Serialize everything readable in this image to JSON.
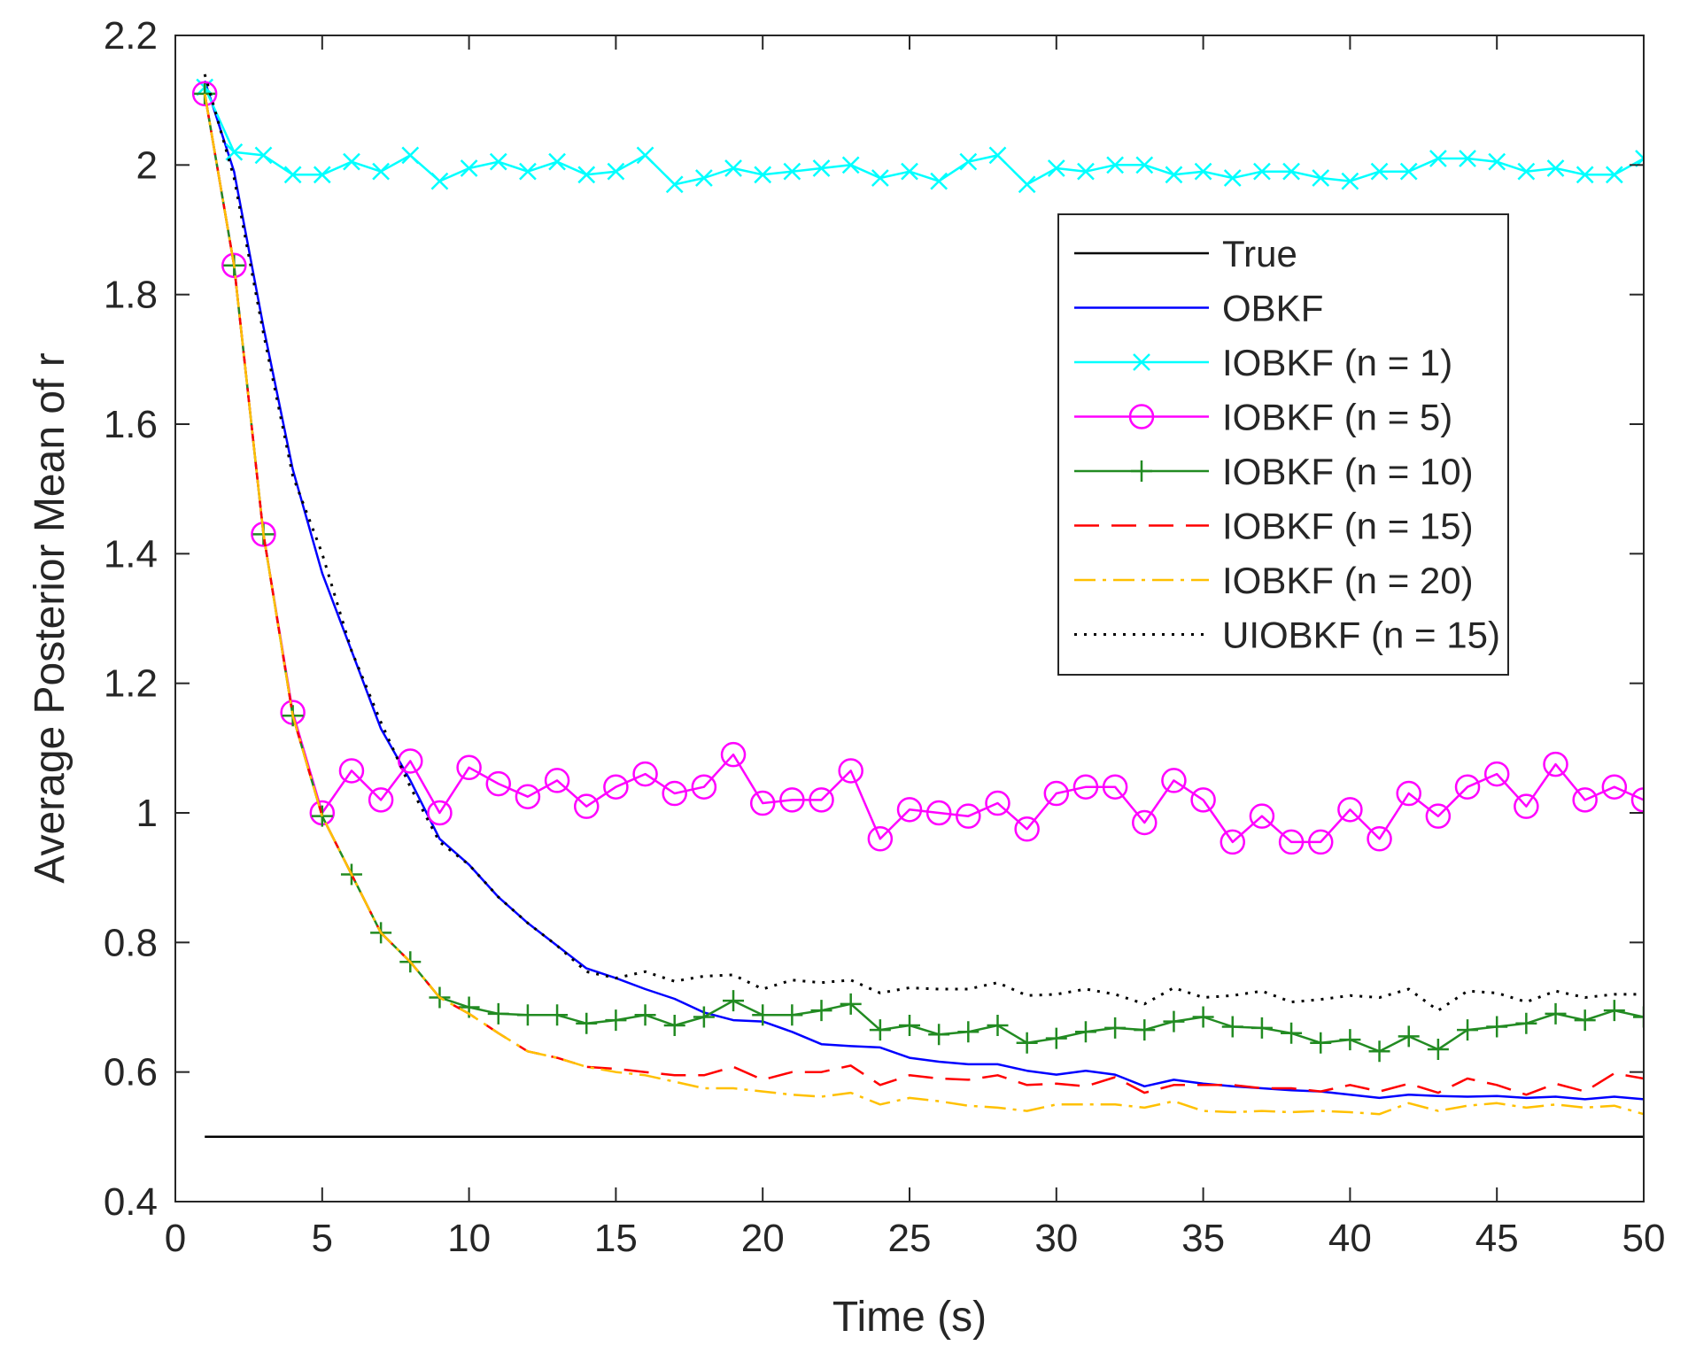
{
  "chart_data": {
    "type": "line",
    "title": "",
    "xlabel": "Time (s)",
    "ylabel": "Average Posterior Mean of r",
    "xlim": [
      0,
      50
    ],
    "ylim": [
      0.4,
      2.2
    ],
    "xticks": [
      0,
      5,
      10,
      15,
      20,
      25,
      30,
      35,
      40,
      45,
      50
    ],
    "yticks": [
      0.4,
      0.6,
      0.8,
      1,
      1.2,
      1.4,
      1.6,
      1.8,
      2,
      2.2
    ],
    "xtick_labels": [
      "0",
      "5",
      "10",
      "15",
      "20",
      "25",
      "30",
      "35",
      "40",
      "45",
      "50"
    ],
    "ytick_labels": [
      "0.4",
      "0.6",
      "0.8",
      "1",
      "1.2",
      "1.4",
      "1.6",
      "1.8",
      "2",
      "2.2"
    ],
    "grid": false,
    "legend_position": "top-right",
    "x": [
      1,
      2,
      3,
      4,
      5,
      6,
      7,
      8,
      9,
      10,
      11,
      12,
      13,
      14,
      15,
      16,
      17,
      18,
      19,
      20,
      21,
      22,
      23,
      24,
      25,
      26,
      27,
      28,
      29,
      30,
      31,
      32,
      33,
      34,
      35,
      36,
      37,
      38,
      39,
      40,
      41,
      42,
      43,
      44,
      45,
      46,
      47,
      48,
      49,
      50
    ],
    "series": [
      {
        "name": "True",
        "color": "#000000",
        "style": "solid",
        "marker": "none",
        "values": [
          0.5,
          0.5,
          0.5,
          0.5,
          0.5,
          0.5,
          0.5,
          0.5,
          0.5,
          0.5,
          0.5,
          0.5,
          0.5,
          0.5,
          0.5,
          0.5,
          0.5,
          0.5,
          0.5,
          0.5,
          0.5,
          0.5,
          0.5,
          0.5,
          0.5,
          0.5,
          0.5,
          0.5,
          0.5,
          0.5,
          0.5,
          0.5,
          0.5,
          0.5,
          0.5,
          0.5,
          0.5,
          0.5,
          0.5,
          0.5,
          0.5,
          0.5,
          0.5,
          0.5,
          0.5,
          0.5,
          0.5,
          0.5,
          0.5,
          0.5
        ]
      },
      {
        "name": "OBKF",
        "color": "#0000ff",
        "style": "solid",
        "marker": "none",
        "values": [
          2.13,
          1.99,
          1.75,
          1.53,
          1.37,
          1.25,
          1.13,
          1.05,
          0.96,
          0.92,
          0.87,
          0.83,
          0.795,
          0.76,
          0.745,
          0.728,
          0.713,
          0.692,
          0.68,
          0.678,
          0.662,
          0.643,
          0.64,
          0.638,
          0.622,
          0.616,
          0.612,
          0.612,
          0.602,
          0.596,
          0.602,
          0.596,
          0.578,
          0.588,
          0.582,
          0.578,
          0.575,
          0.572,
          0.57,
          0.565,
          0.56,
          0.565,
          0.563,
          0.562,
          0.563,
          0.56,
          0.562,
          0.558,
          0.562,
          0.558
        ]
      },
      {
        "name": "IOBKF (n = 1)",
        "color": "#00ffff",
        "style": "solid",
        "marker": "x",
        "values": [
          2.12,
          2.02,
          2.015,
          1.985,
          1.985,
          2.005,
          1.99,
          2.015,
          1.975,
          1.995,
          2.005,
          1.99,
          2.005,
          1.985,
          1.99,
          2.015,
          1.97,
          1.98,
          1.995,
          1.985,
          1.99,
          1.995,
          2.0,
          1.98,
          1.99,
          1.975,
          2.005,
          2.015,
          1.97,
          1.995,
          1.99,
          2.0,
          2.0,
          1.985,
          1.99,
          1.98,
          1.99,
          1.99,
          1.98,
          1.975,
          1.99,
          1.99,
          2.01,
          2.01,
          2.005,
          1.99,
          1.995,
          1.985,
          1.985,
          2.01
        ]
      },
      {
        "name": "IOBKF (n = 5)",
        "color": "#ff00ff",
        "style": "solid",
        "marker": "o",
        "values": [
          2.11,
          1.845,
          1.43,
          1.155,
          1.0,
          1.065,
          1.02,
          1.08,
          1.0,
          1.07,
          1.045,
          1.025,
          1.05,
          1.01,
          1.04,
          1.06,
          1.03,
          1.04,
          1.09,
          1.015,
          1.02,
          1.02,
          1.065,
          0.96,
          1.005,
          1.0,
          0.995,
          1.015,
          0.975,
          1.03,
          1.04,
          1.04,
          0.985,
          1.05,
          1.02,
          0.955,
          0.995,
          0.955,
          0.955,
          1.005,
          0.96,
          1.03,
          0.995,
          1.04,
          1.06,
          1.01,
          1.075,
          1.02,
          1.04,
          1.02
        ]
      },
      {
        "name": "IOBKF (n = 10)",
        "color": "#228b22",
        "style": "solid",
        "marker": "+",
        "values": [
          2.11,
          1.845,
          1.43,
          1.15,
          0.995,
          0.905,
          0.815,
          0.77,
          0.715,
          0.7,
          0.69,
          0.688,
          0.688,
          0.675,
          0.68,
          0.688,
          0.672,
          0.685,
          0.71,
          0.688,
          0.688,
          0.695,
          0.705,
          0.665,
          0.672,
          0.658,
          0.662,
          0.672,
          0.645,
          0.652,
          0.662,
          0.668,
          0.665,
          0.678,
          0.685,
          0.67,
          0.668,
          0.66,
          0.645,
          0.65,
          0.632,
          0.655,
          0.635,
          0.665,
          0.67,
          0.675,
          0.69,
          0.68,
          0.695,
          0.685
        ]
      },
      {
        "name": "IOBKF (n = 15)",
        "color": "#ff0000",
        "style": "dashed",
        "marker": "none",
        "values": [
          2.11,
          1.845,
          1.43,
          1.15,
          0.995,
          0.905,
          0.815,
          0.77,
          0.715,
          0.69,
          0.66,
          0.632,
          0.622,
          0.608,
          0.605,
          0.6,
          0.595,
          0.595,
          0.608,
          0.588,
          0.6,
          0.6,
          0.61,
          0.58,
          0.595,
          0.59,
          0.588,
          0.595,
          0.58,
          0.582,
          0.578,
          0.592,
          0.568,
          0.58,
          0.58,
          0.58,
          0.575,
          0.575,
          0.57,
          0.58,
          0.57,
          0.582,
          0.568,
          0.59,
          0.58,
          0.565,
          0.582,
          0.57,
          0.598,
          0.59
        ]
      },
      {
        "name": "IOBKF (n = 20)",
        "color": "#ffc000",
        "style": "dashdot",
        "marker": "none",
        "values": [
          2.11,
          1.845,
          1.43,
          1.15,
          0.995,
          0.905,
          0.815,
          0.77,
          0.715,
          0.69,
          0.66,
          0.632,
          0.622,
          0.608,
          0.6,
          0.595,
          0.585,
          0.575,
          0.575,
          0.57,
          0.565,
          0.562,
          0.568,
          0.55,
          0.56,
          0.555,
          0.548,
          0.545,
          0.54,
          0.55,
          0.55,
          0.55,
          0.545,
          0.555,
          0.54,
          0.538,
          0.54,
          0.538,
          0.54,
          0.538,
          0.535,
          0.552,
          0.54,
          0.548,
          0.552,
          0.545,
          0.55,
          0.545,
          0.548,
          0.535
        ]
      },
      {
        "name": "UIOBKF (n = 15)",
        "color": "#000000",
        "style": "dotted",
        "marker": "none",
        "values": [
          2.14,
          1.98,
          1.74,
          1.52,
          1.4,
          1.25,
          1.14,
          1.04,
          0.955,
          0.92,
          0.87,
          0.83,
          0.795,
          0.755,
          0.745,
          0.755,
          0.74,
          0.748,
          0.75,
          0.728,
          0.742,
          0.738,
          0.742,
          0.722,
          0.73,
          0.728,
          0.728,
          0.738,
          0.718,
          0.72,
          0.728,
          0.72,
          0.705,
          0.73,
          0.715,
          0.718,
          0.725,
          0.708,
          0.712,
          0.718,
          0.715,
          0.728,
          0.695,
          0.725,
          0.722,
          0.708,
          0.725,
          0.715,
          0.72,
          0.72
        ]
      }
    ]
  }
}
